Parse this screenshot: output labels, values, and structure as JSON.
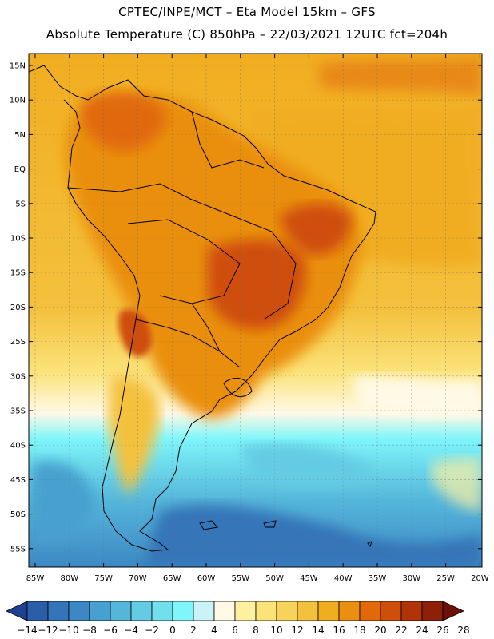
{
  "header": {
    "line1": "CPTEC/INPE/MCT –  Eta Model 15km – GFS",
    "line2": "Absolute Temperature (C) 850hPa – 22/03/2021 12UTC fct=204h"
  },
  "axes": {
    "lat_labels": [
      "15N",
      "10N",
      "5N",
      "EQ",
      "5S",
      "10S",
      "15S",
      "20S",
      "25S",
      "30S",
      "35S",
      "40S",
      "45S",
      "50S",
      "55S"
    ],
    "lon_labels": [
      "85W",
      "80W",
      "75W",
      "70W",
      "65W",
      "60W",
      "55W",
      "50W",
      "45W",
      "40W",
      "35W",
      "30W",
      "25W",
      "20W"
    ]
  },
  "colorbar": {
    "labels": [
      "-14",
      "-12",
      "-10",
      "-8",
      "-6",
      "-4",
      "-2",
      "0",
      "2",
      "4",
      "6",
      "8",
      "10",
      "12",
      "14",
      "16",
      "18",
      "20",
      "22",
      "24",
      "26",
      "28"
    ],
    "colors": [
      "#1f3f8f",
      "#2b5ea8",
      "#3474b8",
      "#3d88c4",
      "#47a0cf",
      "#55b6da",
      "#63cbe3",
      "#72dfec",
      "#7ff6fa",
      "#c9f3f7",
      "#fff9e6",
      "#fdf0a0",
      "#fbe37a",
      "#f8d35a",
      "#f4c13e",
      "#f1ad20",
      "#ea8f0f",
      "#e1690a",
      "#cf4e0a",
      "#b03408",
      "#8e1f08",
      "#6c1008"
    ]
  }
}
